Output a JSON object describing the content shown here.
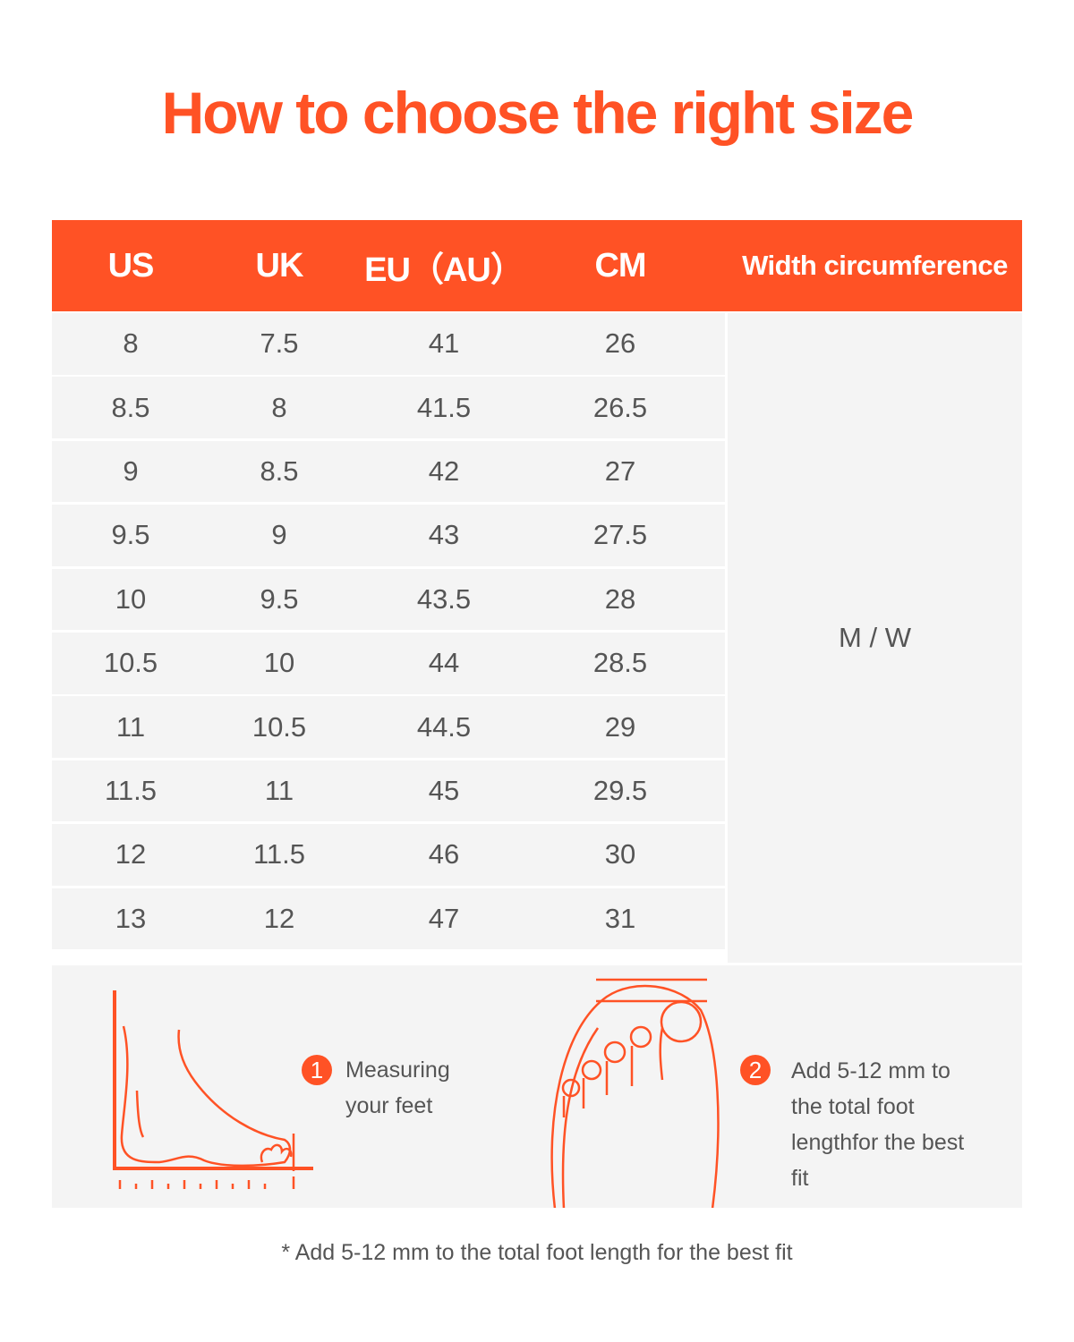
{
  "title": "How to choose the right size",
  "accent_color": "#ff5225",
  "table": {
    "headers": [
      "US",
      "UK",
      "EU（AU）",
      "CM",
      "Width circumference"
    ],
    "rows": [
      [
        "8",
        "7.5",
        "41",
        "26"
      ],
      [
        "8.5",
        "8",
        "41.5",
        "26.5"
      ],
      [
        "9",
        "8.5",
        "42",
        "27"
      ],
      [
        "9.5",
        "9",
        "43",
        "27.5"
      ],
      [
        "10",
        "9.5",
        "43.5",
        "28"
      ],
      [
        "10.5",
        "10",
        "44",
        "28.5"
      ],
      [
        "11",
        "10.5",
        "44.5",
        "29"
      ],
      [
        "11.5",
        "11",
        "45",
        "29.5"
      ],
      [
        "12",
        "11.5",
        "46",
        "30"
      ],
      [
        "13",
        "12",
        "47",
        "31"
      ]
    ],
    "width_value": "M / W"
  },
  "steps": [
    {
      "number": "1",
      "text": "Measuring your feet",
      "icon": "foot-side-ruler-icon"
    },
    {
      "number": "2",
      "text": "Add 5-12 mm to the total foot lengthfor the best fit",
      "icon": "foot-top-toes-icon"
    }
  ],
  "footnote": "* Add 5-12 mm to the total foot length for the best fit"
}
